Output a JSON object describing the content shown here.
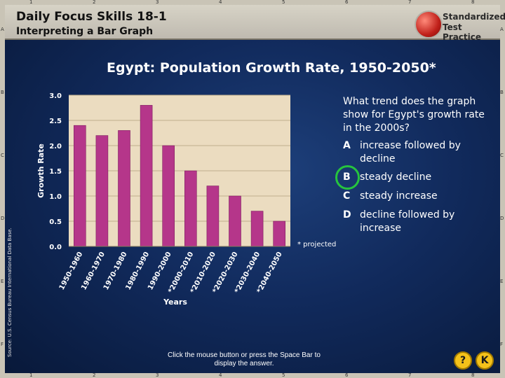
{
  "header": {
    "title": "Daily Focus Skills 18-1",
    "subtitle": "Interpreting a Bar Graph",
    "logo_line1": "Standardized",
    "logo_line2": "Test Practice"
  },
  "ruler": {
    "top_numbers": [
      "1",
      "2",
      "3",
      "4",
      "5",
      "6",
      "7",
      "8"
    ],
    "side_letters": [
      "A",
      "B",
      "C",
      "D",
      "E",
      "F"
    ]
  },
  "chart_data": {
    "type": "bar",
    "title": "Egypt: Population Growth Rate, 1950-2050*",
    "xlabel": "Years",
    "ylabel": "Growth Rate",
    "ylim": [
      0,
      3.0
    ],
    "y_ticks": [
      "0.0",
      "0.5",
      "1.0",
      "1.5",
      "2.0",
      "2.5",
      "3.0"
    ],
    "categories": [
      "1950-1960",
      "1960-1970",
      "1970-1980",
      "1980-1990",
      "1990-2000",
      "*2000-2010",
      "*2010-2020",
      "*2020-2030",
      "*2030-2040",
      "*2040-2050"
    ],
    "values": [
      2.4,
      2.2,
      2.3,
      2.8,
      2.0,
      1.5,
      1.2,
      1.0,
      0.7,
      0.5
    ],
    "footnote": "* projected",
    "source": "Source: U.S. Census Bureau International Data Base.",
    "colors": {
      "bar": "#b5368a",
      "plot_bg": "#ebdcc0",
      "grid": "#bfae8c"
    }
  },
  "question": {
    "prompt": "What trend does the graph show for Egypt's growth rate in the 2000s?",
    "options": [
      {
        "letter": "A",
        "text": "increase followed by decline"
      },
      {
        "letter": "B",
        "text": "steady decline"
      },
      {
        "letter": "C",
        "text": "steady increase"
      },
      {
        "letter": "D",
        "text": "decline followed by increase"
      }
    ],
    "answer": "B"
  },
  "footer": {
    "hint": "Click the mouse button or press the Space Bar to display the answer.",
    "help_label": "?",
    "back_label": "K"
  }
}
